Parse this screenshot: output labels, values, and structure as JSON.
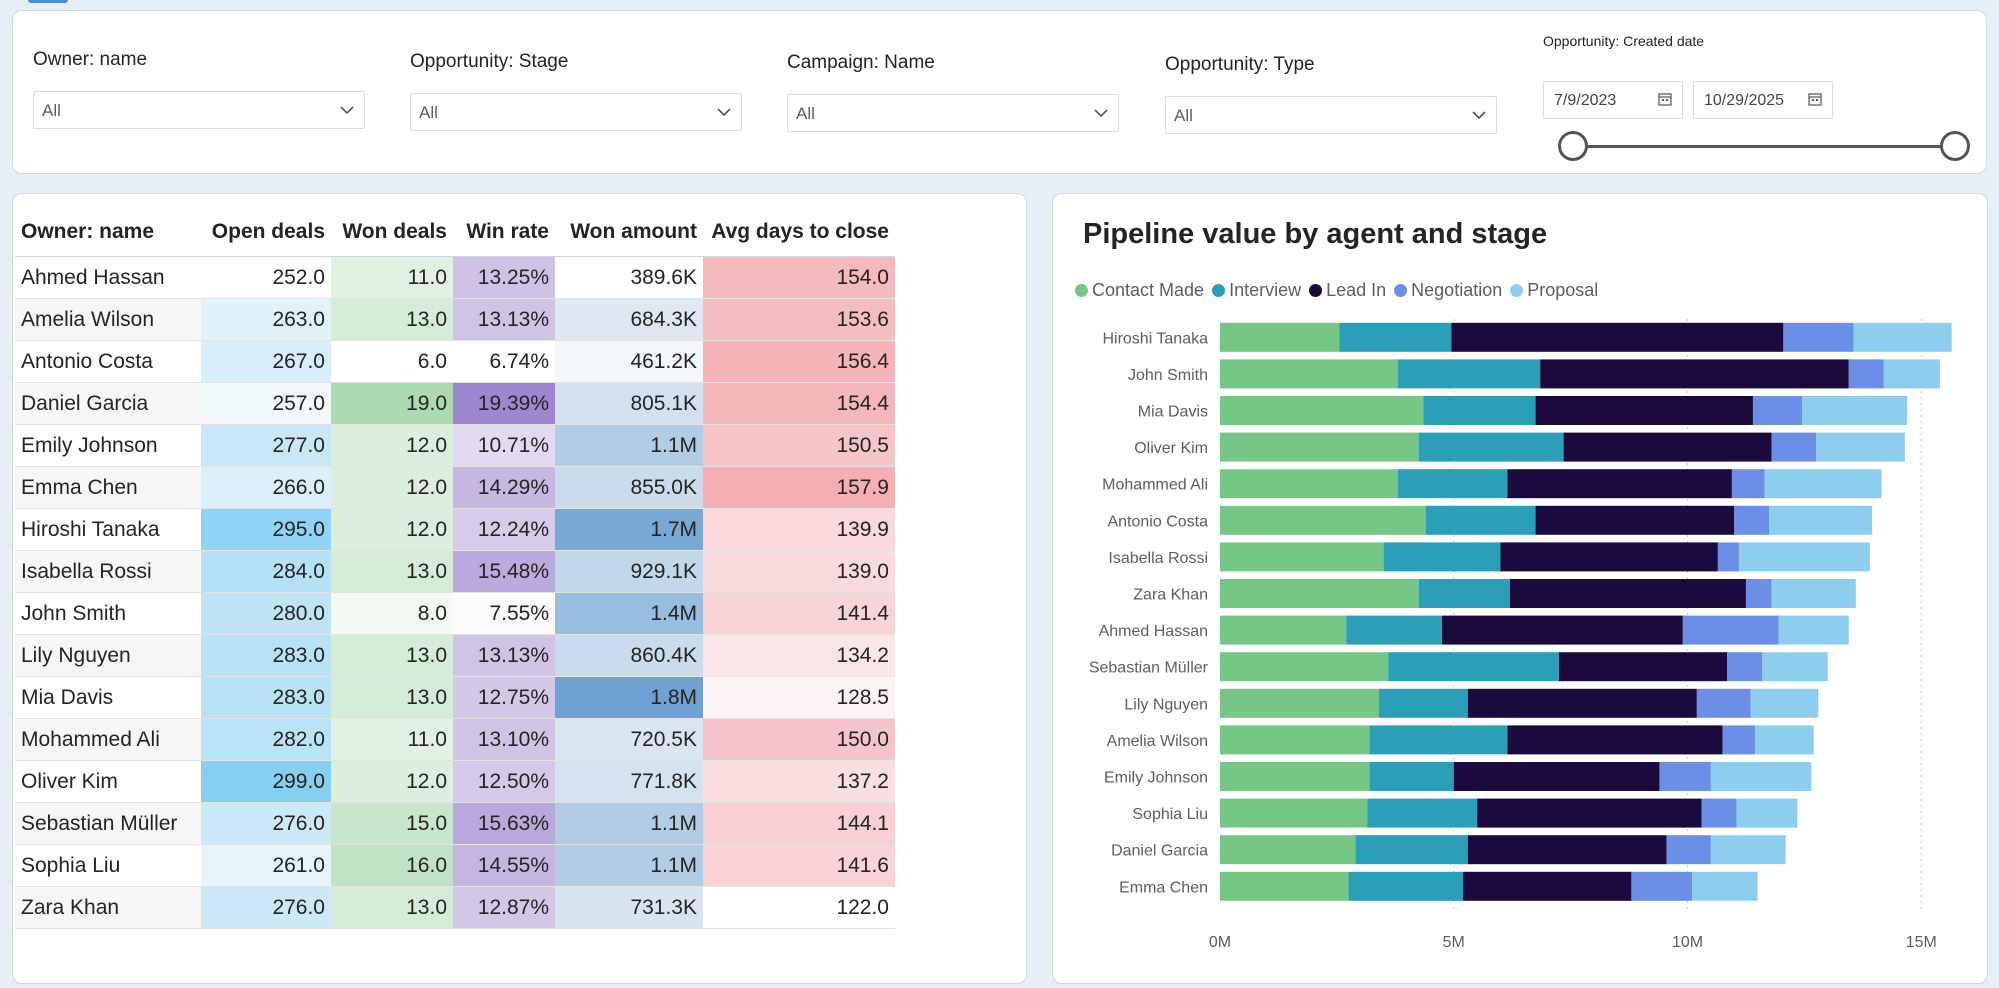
{
  "filters": [
    {
      "title": "Owner: name",
      "value": "All"
    },
    {
      "title": "Opportunity: Stage",
      "value": "All"
    },
    {
      "title": "Campaign: Name",
      "value": "All"
    },
    {
      "title": "Opportunity: Type",
      "value": "All"
    }
  ],
  "date_filter": {
    "title": "Opportunity: Created date",
    "start": "7/9/2023",
    "end": "10/29/2025"
  },
  "table": {
    "columns": [
      "Owner: name",
      "Open deals",
      "Won deals",
      "Win rate",
      "Won amount",
      "Avg days to close"
    ],
    "rows": [
      {
        "name": "Ahmed Hassan",
        "open": "252.0",
        "won": "11.0",
        "rate": "13.25%",
        "amount": "389.6K",
        "days": "154.0",
        "bg": [
          "#ffffff",
          "#e1f2e2",
          "#cfc2e6",
          "#ffffff",
          "#f6b9bd"
        ]
      },
      {
        "name": "Amelia Wilson",
        "open": "263.0",
        "won": "13.0",
        "rate": "13.13%",
        "amount": "684.3K",
        "days": "153.6",
        "bg": [
          "#e2f2fb",
          "#d5ecd7",
          "#d0c4e6",
          "#dde8f3",
          "#f6bdc1"
        ]
      },
      {
        "name": "Antonio Costa",
        "open": "267.0",
        "won": "6.0",
        "rate": "6.74%",
        "amount": "461.2K",
        "days": "156.4",
        "bg": [
          "#d8eefb",
          "#ffffff",
          "#ffffff",
          "#f3f7fb",
          "#f6b4b9"
        ]
      },
      {
        "name": "Daniel Garcia",
        "open": "257.0",
        "won": "19.0",
        "rate": "19.39%",
        "amount": "805.1K",
        "days": "154.4",
        "bg": [
          "#f2f9fd",
          "#acdbb1",
          "#9e87d1",
          "#d2e0ef",
          "#f6b7bb"
        ]
      },
      {
        "name": "Emily Johnson",
        "open": "277.0",
        "won": "12.0",
        "rate": "10.71%",
        "amount": "1.1M",
        "days": "150.5",
        "bg": [
          "#c8e8f9",
          "#dcefdd",
          "#e2daf0",
          "#b3cce6",
          "#f7c4c8"
        ]
      },
      {
        "name": "Emma Chen",
        "open": "266.0",
        "won": "12.0",
        "rate": "14.29%",
        "amount": "855.0K",
        "days": "157.9",
        "bg": [
          "#dcf0fb",
          "#dcefdd",
          "#c7b8e2",
          "#c9dbed",
          "#f5afb4"
        ]
      },
      {
        "name": "Hiroshi Tanaka",
        "open": "295.0",
        "won": "12.0",
        "rate": "12.24%",
        "amount": "1.7M",
        "days": "139.9",
        "bg": [
          "#8fd3f6",
          "#dcefdd",
          "#d6cbe9",
          "#78a8d6",
          "#fad8db"
        ]
      },
      {
        "name": "Isabella Rossi",
        "open": "284.0",
        "won": "13.0",
        "rate": "15.48%",
        "amount": "929.1K",
        "days": "139.0",
        "bg": [
          "#b4e1f8",
          "#d5ecd7",
          "#bca9dd",
          "#c3d7eb",
          "#fadadd"
        ]
      },
      {
        "name": "John Smith",
        "open": "280.0",
        "won": "8.0",
        "rate": "7.55%",
        "amount": "1.4M",
        "days": "141.4",
        "bg": [
          "#bfe4f8",
          "#f2faf3",
          "#fbfafd",
          "#97bde0",
          "#f9d4d7"
        ]
      },
      {
        "name": "Lily Nguyen",
        "open": "283.0",
        "won": "13.0",
        "rate": "13.13%",
        "amount": "860.4K",
        "days": "134.2",
        "bg": [
          "#b7e2f8",
          "#d5ecd7",
          "#d0c4e6",
          "#c9dbed",
          "#fce5e7"
        ]
      },
      {
        "name": "Mia Davis",
        "open": "283.0",
        "won": "13.0",
        "rate": "12.75%",
        "amount": "1.8M",
        "days": "128.5",
        "bg": [
          "#b7e2f8",
          "#d5ecd7",
          "#d3c8e8",
          "#6fa2d3",
          "#fef3f4"
        ]
      },
      {
        "name": "Mohammed Ali",
        "open": "282.0",
        "won": "11.0",
        "rate": "13.10%",
        "amount": "720.5K",
        "days": "150.0",
        "bg": [
          "#b9e3f8",
          "#e1f2e2",
          "#d0c4e6",
          "#d9e6f2",
          "#f7c5c9"
        ]
      },
      {
        "name": "Oliver Kim",
        "open": "299.0",
        "won": "12.0",
        "rate": "12.50%",
        "amount": "771.8K",
        "days": "137.2",
        "bg": [
          "#85cff5",
          "#dcefdd",
          "#d4c9e8",
          "#d5e3f0",
          "#fbdee0"
        ]
      },
      {
        "name": "Sebastian Müller",
        "open": "276.0",
        "won": "15.0",
        "rate": "15.63%",
        "amount": "1.1M",
        "days": "144.1",
        "bg": [
          "#cbe9f9",
          "#c8e6cb",
          "#baa7dc",
          "#b3cce6",
          "#f8cfd2"
        ]
      },
      {
        "name": "Sophia Liu",
        "open": "261.0",
        "won": "16.0",
        "rate": "14.55%",
        "amount": "1.1M",
        "days": "141.6",
        "bg": [
          "#e6f4fc",
          "#c1e3c5",
          "#c5b5e1",
          "#b3cce6",
          "#f9d3d6"
        ]
      },
      {
        "name": "Zara Khan",
        "open": "276.0",
        "won": "13.0",
        "rate": "12.87%",
        "amount": "731.3K",
        "days": "122.0",
        "bg": [
          "#cbe9f9",
          "#d5ecd7",
          "#d2c7e7",
          "#d8e5f1",
          "#ffffff"
        ]
      }
    ]
  },
  "chart_data": {
    "type": "bar",
    "orientation": "horizontal",
    "stacked": true,
    "title": "Pipeline value by agent and stage",
    "categories": [
      "Hiroshi Tanaka",
      "John Smith",
      "Mia Davis",
      "Oliver Kim",
      "Mohammed Ali",
      "Antonio Costa",
      "Isabella Rossi",
      "Zara Khan",
      "Ahmed Hassan",
      "Sebastian Müller",
      "Lily Nguyen",
      "Amelia Wilson",
      "Emily Johnson",
      "Sophia Liu",
      "Daniel Garcia",
      "Emma Chen"
    ],
    "series": [
      {
        "name": "Contact Made",
        "color": "#76c686",
        "values": [
          2.55,
          3.8,
          4.35,
          4.25,
          3.8,
          4.4,
          3.5,
          4.25,
          2.7,
          3.6,
          3.4,
          3.2,
          3.2,
          3.15,
          2.9,
          2.75
        ]
      },
      {
        "name": "Interview",
        "color": "#2b9eb8",
        "values": [
          2.4,
          3.05,
          2.4,
          3.1,
          2.35,
          2.35,
          2.5,
          1.95,
          2.05,
          3.65,
          1.9,
          2.95,
          1.8,
          2.35,
          2.4,
          2.45
        ]
      },
      {
        "name": "Lead In",
        "color": "#1b0a3c",
        "values": [
          7.1,
          6.6,
          4.65,
          4.45,
          4.8,
          4.25,
          4.65,
          5.05,
          5.15,
          3.6,
          4.9,
          4.6,
          4.4,
          4.8,
          4.25,
          3.6
        ]
      },
      {
        "name": "Negotiation",
        "color": "#6b8fe6",
        "values": [
          1.5,
          0.75,
          1.05,
          0.95,
          0.7,
          0.75,
          0.45,
          0.55,
          2.05,
          0.75,
          1.15,
          0.7,
          1.1,
          0.75,
          0.95,
          1.3
        ]
      },
      {
        "name": "Proposal",
        "color": "#8dcdee",
        "values": [
          2.1,
          1.2,
          2.25,
          1.9,
          2.5,
          2.2,
          2.8,
          1.8,
          1.5,
          1.4,
          1.45,
          1.25,
          2.15,
          1.3,
          1.6,
          1.4
        ]
      }
    ],
    "xlim": [
      0,
      16
    ],
    "xticks": [
      0,
      5,
      10,
      15
    ],
    "xtick_labels": [
      "0M",
      "5M",
      "10M",
      "15M"
    ],
    "legend": "top-left",
    "grid": "vertical-dotted"
  }
}
